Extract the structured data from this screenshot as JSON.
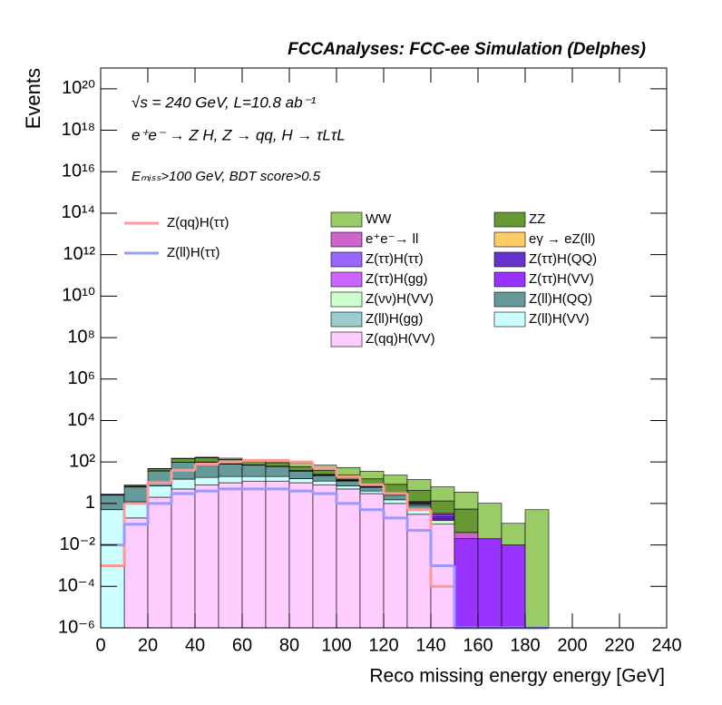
{
  "chart_data": {
    "type": "stacked_histogram",
    "title": "FCCAnalyses: FCC-ee Simulation (Delphes)",
    "annotations": [
      "√s = 240 GeV, L=10.8 ab⁻¹",
      "e⁺e⁻ → Z H, Z → qq, H → τLτL",
      "Eₘᵢₛₛ>100 GeV, BDT score>0.5"
    ],
    "x_label": "Reco missing energy energy [GeV]",
    "y_label": "Events",
    "log_y": true,
    "bins": [
      0,
      10,
      20,
      30,
      40,
      50,
      60,
      70,
      80,
      90,
      100,
      110,
      120,
      130,
      140,
      150,
      160,
      170,
      180,
      190
    ],
    "xlim": [
      0,
      240
    ],
    "xticks": [
      0,
      20,
      40,
      60,
      80,
      100,
      120,
      140,
      160,
      180,
      200,
      220,
      240
    ],
    "ylim": [
      1e-06,
      1e+21
    ],
    "yticks": [
      {
        "value": 1e-06,
        "label": "10⁻⁶"
      },
      {
        "value": 0.0001,
        "label": "10⁻⁴"
      },
      {
        "value": 0.01,
        "label": "10⁻²"
      },
      1,
      {
        "value": 100,
        "label": "10²"
      },
      {
        "value": 10000,
        "label": "10⁴"
      },
      {
        "value": 1000000.0,
        "label": "10⁶"
      },
      {
        "value": 100000000.0,
        "label": "10⁸"
      },
      {
        "value": 10000000000.0,
        "label": "10¹⁰"
      },
      {
        "value": 1000000000000.0,
        "label": "10¹²"
      },
      {
        "value": 100000000000000.0,
        "label": "10¹⁴"
      },
      {
        "value": 1e+16,
        "label": "10¹⁶"
      },
      {
        "value": 1e+18,
        "label": "10¹⁸"
      },
      {
        "value": 1e+20,
        "label": "10²⁰"
      }
    ],
    "series": [
      {
        "name": "WW",
        "color": "#99cc66",
        "values": [
          0.1,
          0.3,
          1,
          5,
          10,
          20,
          20,
          25,
          30,
          30,
          30,
          20,
          15,
          10,
          5,
          3,
          1,
          0.1,
          0.5
        ]
      },
      {
        "name": "ZZ",
        "color": "#669933",
        "values": [
          0.2,
          1,
          10,
          50,
          60,
          50,
          40,
          30,
          20,
          15,
          10,
          8,
          5,
          3,
          1,
          0.5,
          0,
          0,
          0
        ]
      },
      {
        "name": "e⁺e⁻→ ll",
        "color": "#cc66cc",
        "values": [
          0,
          0.01,
          0.05,
          0.1,
          0.1,
          0.2,
          0.3,
          0.3,
          0.3,
          0.3,
          0.3,
          0.2,
          0.1,
          0.1,
          0.05,
          0.02,
          0,
          0,
          0
        ]
      },
      {
        "name": "eγ → eZ(ll)",
        "color": "#ffcc66",
        "values": [
          0,
          0,
          0,
          0,
          0,
          0,
          0,
          0,
          0,
          0.02,
          0,
          0.02,
          0,
          0,
          0,
          0,
          0,
          0,
          0
        ]
      },
      {
        "name": "Z(ττ)H(ττ)",
        "color": "#9966ff",
        "values": [
          0,
          0.05,
          0.3,
          0.5,
          0.8,
          1,
          1,
          1,
          0.8,
          0.8,
          0.5,
          0.3,
          0.2,
          0.1,
          0.05,
          0,
          0,
          0,
          0
        ]
      },
      {
        "name": "Z(ττ)H(QQ)",
        "color": "#6633cc",
        "values": [
          0,
          0.05,
          0.2,
          0.5,
          0.8,
          1,
          1,
          1,
          1,
          1,
          0.8,
          0.5,
          0.3,
          0.1,
          0.05,
          0,
          0,
          0,
          0
        ]
      },
      {
        "name": "Z(ττ)H(gg)",
        "color": "#cc66ff",
        "values": [
          0,
          0.01,
          0.05,
          0.1,
          0.1,
          0.05,
          0.1,
          0.05,
          0.05,
          0.02,
          0.02,
          0.02,
          0.01,
          0,
          0,
          0,
          0,
          0,
          0
        ]
      },
      {
        "name": "Z(ττ)H(VV)",
        "color": "#9933ff",
        "values": [
          0,
          0.002,
          0.01,
          0.05,
          0.1,
          0.1,
          0.05,
          0.05,
          0.05,
          0.03,
          0.05,
          0.05,
          0.03,
          0.03,
          0.03,
          0.02,
          0.02,
          0.01,
          0
        ]
      },
      {
        "name": "Z(νν)H(VV)",
        "color": "#ccffcc",
        "values": [
          0,
          0.1,
          0.3,
          0.5,
          0.5,
          0.5,
          0.5,
          0.5,
          0.5,
          1,
          0.5,
          0.3,
          0.2,
          0.1,
          0.05,
          0,
          0,
          0,
          0
        ]
      },
      {
        "name": "Z(ll)H(QQ)",
        "color": "#669999",
        "values": [
          2,
          5,
          30,
          80,
          80,
          60,
          50,
          40,
          20,
          10,
          5,
          2,
          1,
          0.3,
          0,
          0,
          0,
          0,
          0
        ]
      },
      {
        "name": "Z(ll)H(gg)",
        "color": "#99cccc",
        "values": [
          0.005,
          0.01,
          0.02,
          0.03,
          0.03,
          0.02,
          0.005,
          0,
          0.002,
          0,
          0,
          0,
          0,
          0,
          0,
          0,
          0,
          0,
          0
        ]
      },
      {
        "name": "Z(ll)H(VV)",
        "color": "#ccffff",
        "values": [
          0.5,
          1,
          5,
          10,
          10,
          10,
          8,
          8,
          6,
          4,
          2,
          1,
          0.5,
          0.2,
          0,
          0,
          0,
          0,
          0
        ]
      },
      {
        "name": "Z(qq)H(VV)",
        "color": "#ffccff",
        "values": [
          0,
          0.2,
          2,
          5,
          8,
          10,
          12,
          12,
          10,
          8,
          5,
          3,
          1,
          0.3,
          0.1,
          0,
          0,
          0,
          0
        ]
      }
    ],
    "lines": [
      {
        "name": "Z(qq)H(ττ)",
        "color": "#ff9999",
        "values": [
          0.001,
          1,
          10,
          40,
          80,
          100,
          120,
          120,
          100,
          50,
          20,
          8,
          3,
          0.5,
          0.0001,
          0,
          0,
          0,
          0
        ]
      },
      {
        "name": "Z(ll)H(ττ)",
        "color": "#9999ff",
        "values": [
          0.01,
          0.1,
          1,
          3,
          4,
          5,
          5,
          5,
          4,
          3,
          1,
          0.5,
          0.2,
          0.05,
          0.001,
          0,
          0,
          0,
          0
        ]
      }
    ]
  }
}
